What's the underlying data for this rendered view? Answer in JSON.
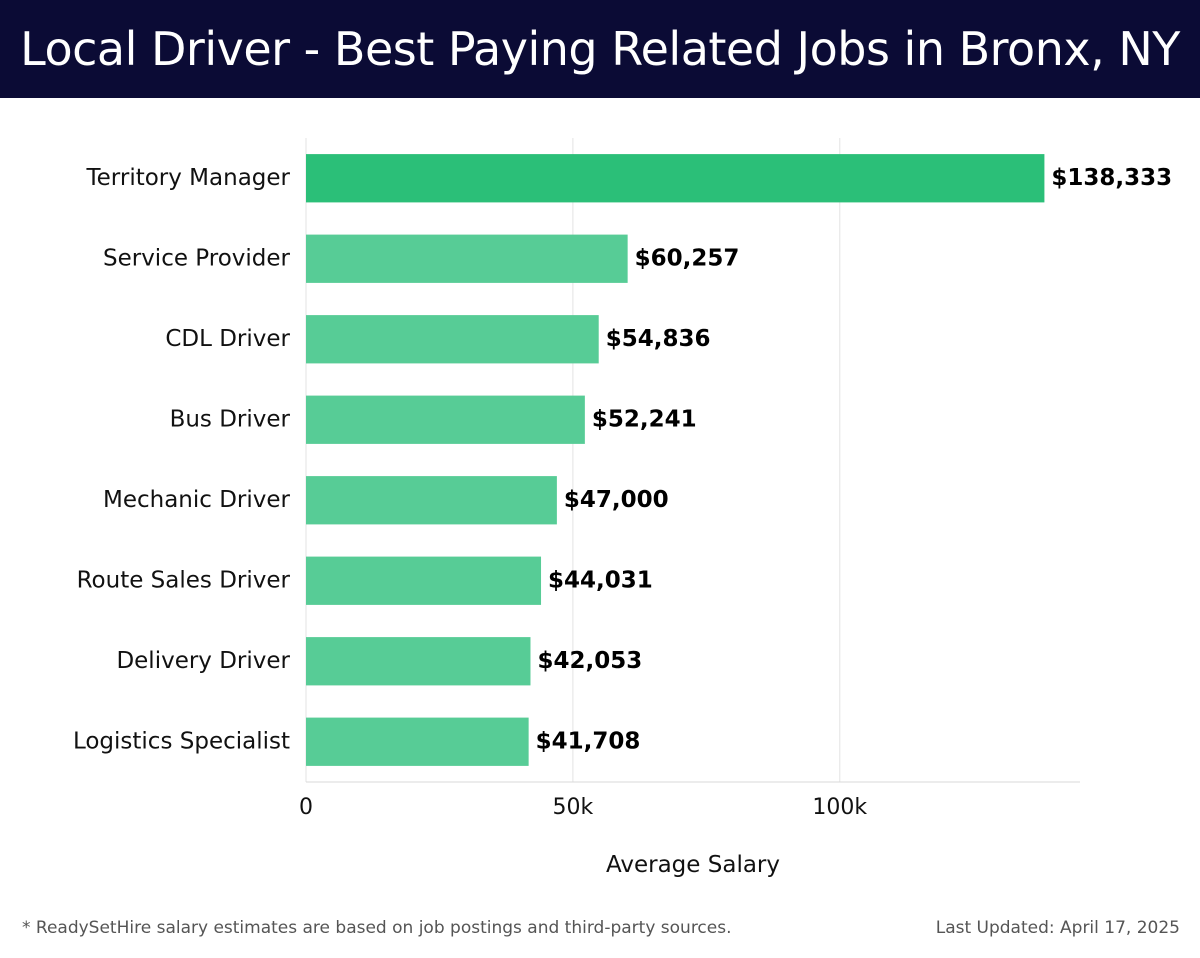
{
  "header": {
    "title": "Local Driver - Best Paying Related Jobs in Bronx, NY"
  },
  "chart_data": {
    "type": "bar",
    "orientation": "horizontal",
    "categories": [
      "Territory Manager",
      "Service Provider",
      "CDL Driver",
      "Bus Driver",
      "Mechanic Driver",
      "Route Sales Driver",
      "Delivery Driver",
      "Logistics Specialist"
    ],
    "values": [
      138333,
      60257,
      54836,
      52241,
      47000,
      44031,
      42053,
      41708
    ],
    "value_labels": [
      "$138,333",
      "$60,257",
      "$54,836",
      "$52,241",
      "$47,000",
      "$44,031",
      "$42,053",
      "$41,708"
    ],
    "xlabel": "Average Salary",
    "ylabel": "",
    "xlim": [
      0,
      145000
    ],
    "xticks": [
      0,
      50000,
      100000
    ],
    "xtick_labels": [
      "0",
      "50k",
      "100k"
    ],
    "grid": true,
    "colors": {
      "highlight": "#2bbf78",
      "bar": "#57cc96"
    }
  },
  "footer": {
    "note": "* ReadySetHire salary estimates are based on job postings and third-party sources.",
    "updated": "Last Updated: April 17, 2025"
  }
}
